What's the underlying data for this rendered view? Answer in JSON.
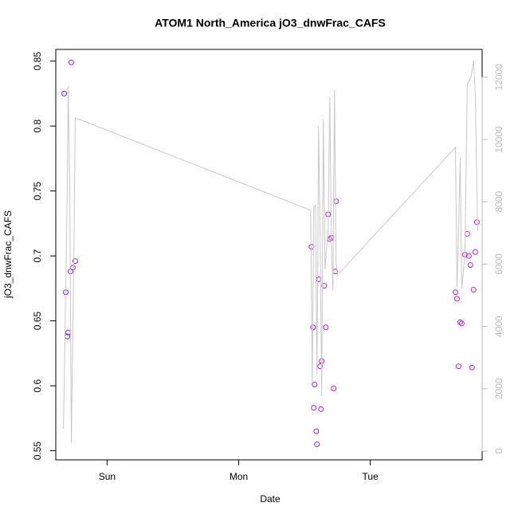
{
  "chart_data": {
    "type": "scatter",
    "title": "ATOM1 North_America jO3_dnwFrac_CAFS",
    "x_label": "Date",
    "y_label": "jO3_dnwFrac_CAFS",
    "xlim": [
      -0.39,
      2.85
    ],
    "xticks": [
      {
        "value": 0,
        "label": "Sun"
      },
      {
        "value": 1,
        "label": "Mon"
      },
      {
        "value": 2,
        "label": "Tue"
      }
    ],
    "ylim": [
      0.543,
      0.859
    ],
    "yticks": [
      0.55,
      0.6,
      0.65,
      0.7,
      0.75,
      0.8,
      0.85
    ],
    "y2lim": [
      -280,
      12890
    ],
    "y2ticks": [
      0,
      2000,
      4000,
      6000,
      8000,
      10000,
      12000
    ],
    "y2_color": "#bbbbbb",
    "series": [
      {
        "type": "scatter",
        "color_range": [
          "#7a1cff",
          "#ff10c8"
        ],
        "x": [
          -0.326,
          -0.314,
          -0.302,
          -0.296,
          -0.278,
          -0.272,
          -0.26,
          -0.242,
          1.553,
          1.565,
          1.571,
          1.577,
          1.589,
          1.595,
          1.607,
          1.619,
          1.631,
          1.625,
          1.65,
          1.662,
          1.68,
          1.692,
          1.704,
          1.722,
          1.734,
          1.74,
          2.647,
          2.659,
          2.671,
          2.683,
          2.695,
          2.719,
          2.737,
          2.749,
          2.761,
          2.773,
          2.785,
          2.798,
          2.81
        ],
        "values": [
          0.825,
          0.672,
          0.638,
          0.641,
          0.688,
          0.849,
          0.691,
          0.696,
          0.707,
          0.645,
          0.583,
          0.601,
          0.565,
          0.555,
          0.682,
          0.615,
          0.619,
          0.582,
          0.677,
          0.645,
          0.732,
          0.713,
          0.714,
          0.598,
          0.688,
          0.742,
          0.672,
          0.667,
          0.615,
          0.649,
          0.648,
          0.701,
          0.717,
          0.7,
          0.693,
          0.614,
          0.674,
          0.703,
          0.726
        ]
      },
      {
        "type": "line",
        "axis": "y2",
        "color": "#c8c8c8",
        "x": [
          -0.332,
          -0.314,
          -0.302,
          -0.296,
          -0.284,
          -0.272,
          -0.254,
          -0.242,
          1.547,
          1.559,
          1.571,
          1.583,
          1.595,
          1.607,
          1.619,
          1.631,
          1.643,
          1.656,
          1.668,
          1.68,
          1.692,
          1.704,
          1.716,
          1.728,
          1.74,
          1.752,
          2.647,
          2.659,
          2.671,
          2.683,
          2.695,
          2.719,
          2.737,
          2.767,
          2.785,
          2.798,
          2.816
        ],
        "values": [
          717,
          5272,
          8598,
          11720,
          8598,
          256,
          5783,
          10697,
          7728,
          2200,
          7830,
          7882,
          2457,
          10441,
          6807,
          1766,
          10645,
          5835,
          6551,
          7063,
          11362,
          6807,
          5169,
          11592,
          6039,
          5655,
          9750,
          5272,
          7063,
          9417,
          5220,
          6295,
          11746,
          12027,
          12539,
          11413,
          7063
        ]
      }
    ]
  }
}
